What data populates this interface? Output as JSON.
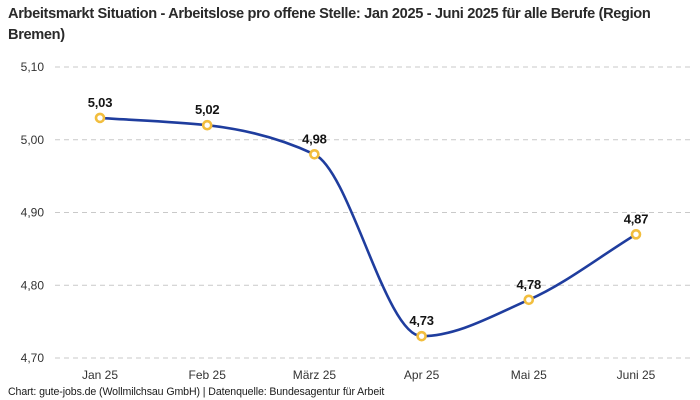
{
  "header": {
    "title": "Arbeitsmarkt Situation - Arbeitslose pro offene Stelle: Jan 2025 - Juni 2025 für alle Berufe (Region Bremen)"
  },
  "footer": {
    "attribution": "Chart: gute-jobs.de (Wollmilchsau GmbH) | Datenquelle: Bundesagentur für Arbeit"
  },
  "colors": {
    "line": "#1F3D9E",
    "marker_ring": "#F2BE3E",
    "marker_fill": "#FFFFFF",
    "grid": "#C9C9C9",
    "axis_text": "#333333",
    "value_label": "#141414",
    "title_text": "#2A2A2A",
    "footer_text": "#1A1A1A",
    "background": "#FFFFFF"
  },
  "chart_data": {
    "type": "line",
    "title": "Arbeitsmarkt Situation - Arbeitslose pro offene Stelle: Jan 2025 - Juni 2025 für alle Berufe (Region Bremen)",
    "xlabel": "",
    "ylabel": "",
    "categories": [
      "Jan 25",
      "Feb 25",
      "März 25",
      "Apr 25",
      "Mai 25",
      "Juni 25"
    ],
    "series": [
      {
        "name": "Arbeitslose pro offene Stelle",
        "values": [
          5.03,
          5.02,
          4.98,
          4.73,
          4.78,
          4.87
        ],
        "value_labels": [
          "5,03",
          "5,02",
          "4,98",
          "4,73",
          "4,78",
          "4,87"
        ]
      }
    ],
    "ylim": [
      4.7,
      5.1
    ],
    "yticks": [
      5.1,
      5.0,
      4.9,
      4.8,
      4.7
    ],
    "ytick_labels": [
      "5,10",
      "5,00",
      "4,90",
      "4,80",
      "4,70"
    ],
    "grid": "horizontal-dashed",
    "legend_position": "none",
    "curve": "smooth-monotone",
    "point_labels_visible": true
  }
}
